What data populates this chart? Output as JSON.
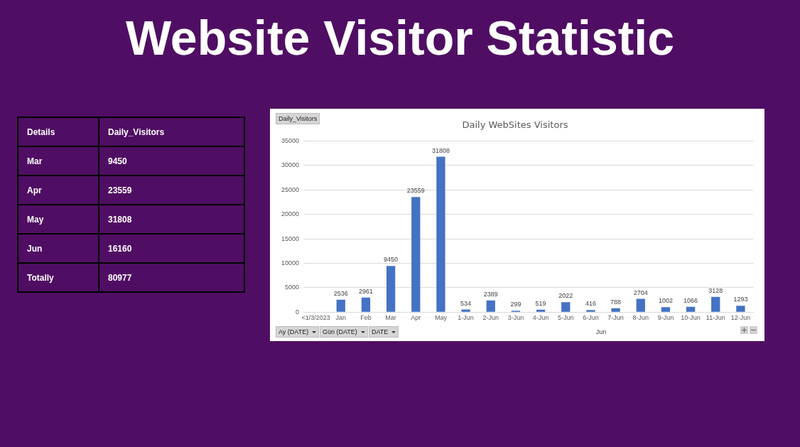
{
  "chart_data": [
    {
      "type": "other",
      "title": "Website Visitor Statistic",
      "annotations": [
        "Details",
        "Daily_Visitors",
        "Mar",
        "9450",
        "Apr",
        "23559",
        "May",
        "31808",
        "Jun",
        "16160",
        "Totally",
        "80977"
      ]
    },
    {
      "type": "bar",
      "title": "Daily WebSites Visitors",
      "categories": [
        "<1/3/2023",
        "Jan",
        "Feb",
        "Mar",
        "Apr",
        "May",
        "1-Jun",
        "2-Jun",
        "3-Jun",
        "4-Jun",
        "5-Jun",
        "6-Jun",
        "7-Jun",
        "8-Jun",
        "9-Jun",
        "10-Jun",
        "11-Jun",
        "12-Jun"
      ],
      "values": [
        null,
        2536,
        2961,
        9450,
        23559,
        31808,
        534,
        2389,
        299,
        519,
        2022,
        416,
        788,
        2704,
        1002,
        1066,
        3128,
        1293
      ],
      "color": "#4472c4",
      "ylim": [
        0,
        35000
      ],
      "yticks": [
        0,
        5000,
        10000,
        15000,
        20000,
        25000,
        30000,
        35000
      ],
      "grid": "y",
      "legend": false,
      "data_labels": true,
      "annotations": [
        "Jun",
        "Daily_Visitors",
        "Ay (DATE)",
        "Gün (DATE)",
        "DATE"
      ]
    }
  ]
}
